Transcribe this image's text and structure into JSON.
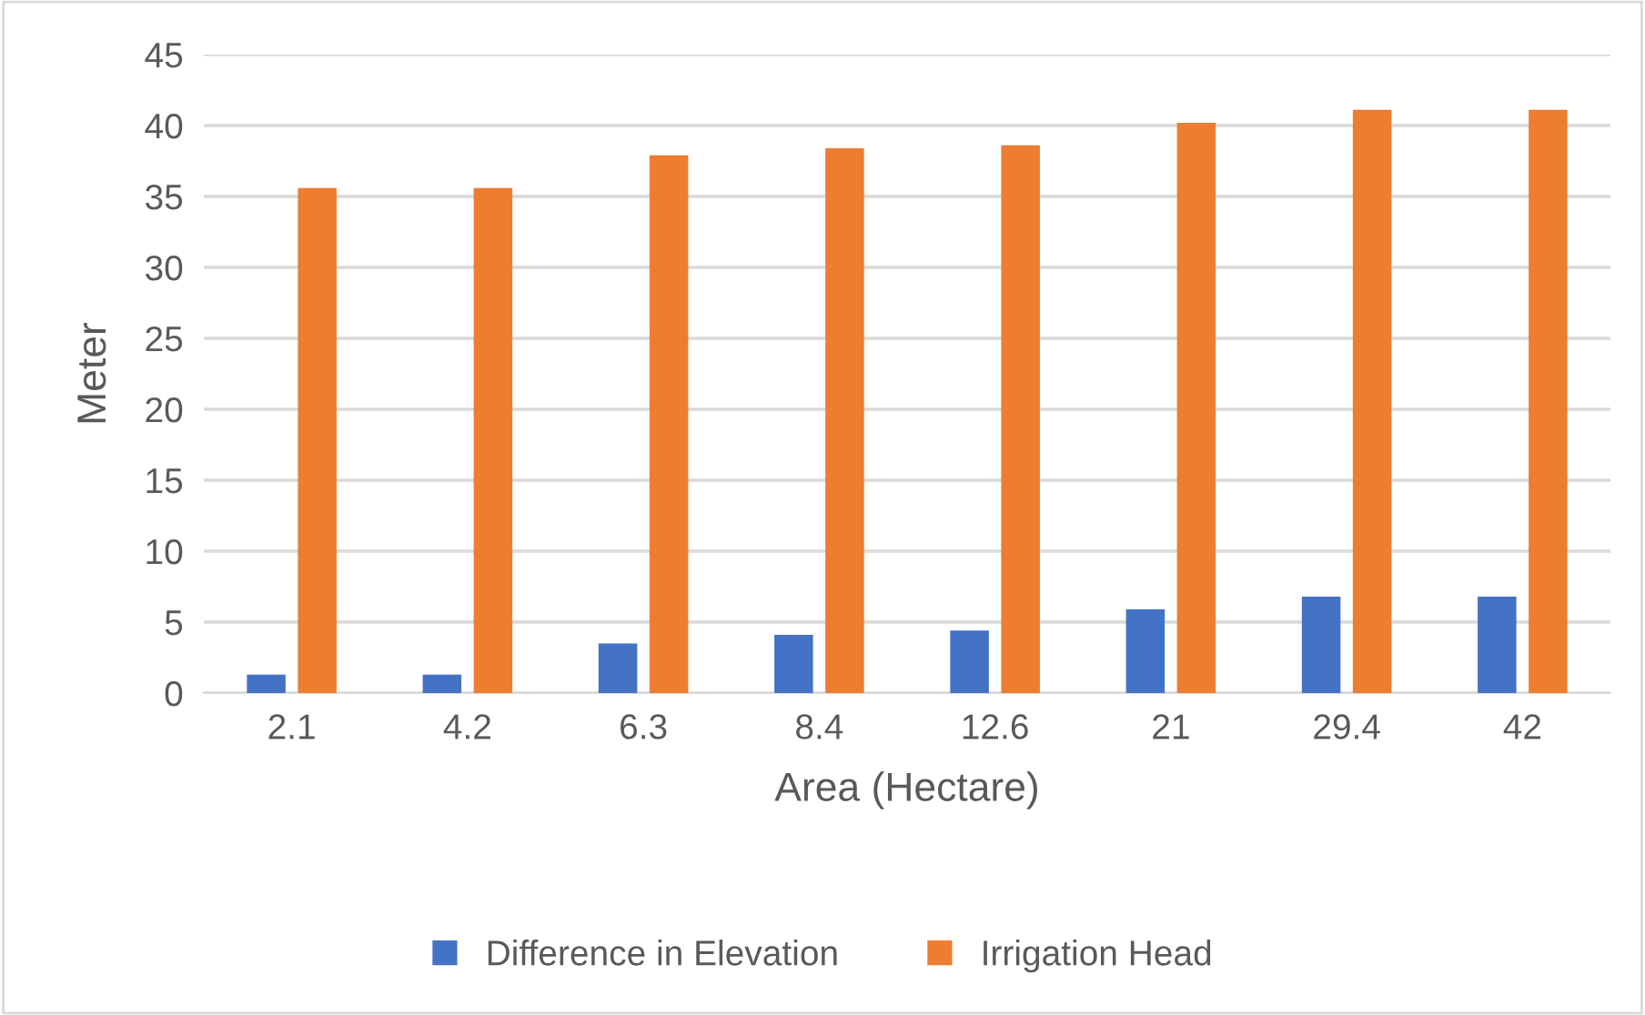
{
  "chart_data": {
    "type": "bar",
    "xlabel": "Area (Hectare)",
    "ylabel": "Meter",
    "categories": [
      "2.1",
      "4.2",
      "6.3",
      "8.4",
      "12.6",
      "21",
      "29.4",
      "42"
    ],
    "series": [
      {
        "name": "Difference in Elevation",
        "color": "#4472c4",
        "values": [
          1.3,
          1.3,
          3.5,
          4.1,
          4.4,
          5.9,
          6.8,
          6.8
        ]
      },
      {
        "name": "Irrigation Head",
        "color": "#ed7d31",
        "values": [
          35.6,
          35.6,
          37.9,
          38.4,
          38.6,
          40.2,
          41.1,
          41.1
        ]
      }
    ],
    "ylim": [
      0,
      45
    ],
    "yticks": [
      0,
      5,
      10,
      15,
      20,
      25,
      30,
      35,
      40,
      45
    ],
    "grid": "y",
    "legend": "bottom"
  }
}
